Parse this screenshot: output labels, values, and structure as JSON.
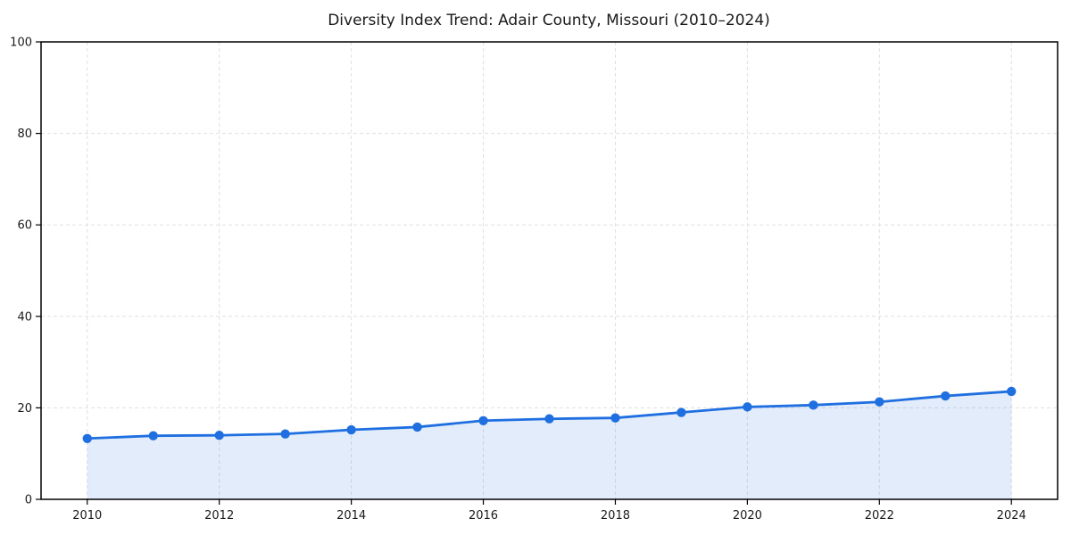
{
  "chart_data": {
    "type": "line",
    "title": "Diversity Index Trend: Adair County, Missouri (2010–2024)",
    "series_name": "Diversity Index",
    "x": [
      2010,
      2011,
      2012,
      2013,
      2014,
      2015,
      2016,
      2017,
      2018,
      2019,
      2020,
      2021,
      2022,
      2023,
      2024
    ],
    "values": [
      13.3,
      13.9,
      14.0,
      14.3,
      15.2,
      15.8,
      17.2,
      17.6,
      17.8,
      19.0,
      20.2,
      20.6,
      21.3,
      22.6,
      23.6
    ],
    "xlabel": "",
    "ylabel": "",
    "xlim": [
      2009.3,
      2024.7
    ],
    "ylim": [
      0,
      100
    ],
    "x_tick_values": [
      2010,
      2012,
      2014,
      2016,
      2018,
      2020,
      2022,
      2024
    ],
    "x_tick_labels": [
      "2010",
      "2012",
      "2014",
      "2016",
      "2018",
      "2020",
      "2022",
      "2024"
    ],
    "y_tick_values": [
      0,
      20,
      40,
      60,
      80,
      100
    ],
    "y_tick_labels": [
      "0",
      "20",
      "40",
      "60",
      "80",
      "100"
    ],
    "grid": true,
    "grid_style": "dashed",
    "legend_position": "none",
    "colors": {
      "line": "#1f6fe0",
      "marker": "#1f6fe0",
      "fill": "#1f6fe0",
      "fill_opacity": 0.13,
      "grid": "#e0e0e0",
      "axis": "#000000",
      "text": "#1a1a1a",
      "background": "#ffffff"
    }
  }
}
